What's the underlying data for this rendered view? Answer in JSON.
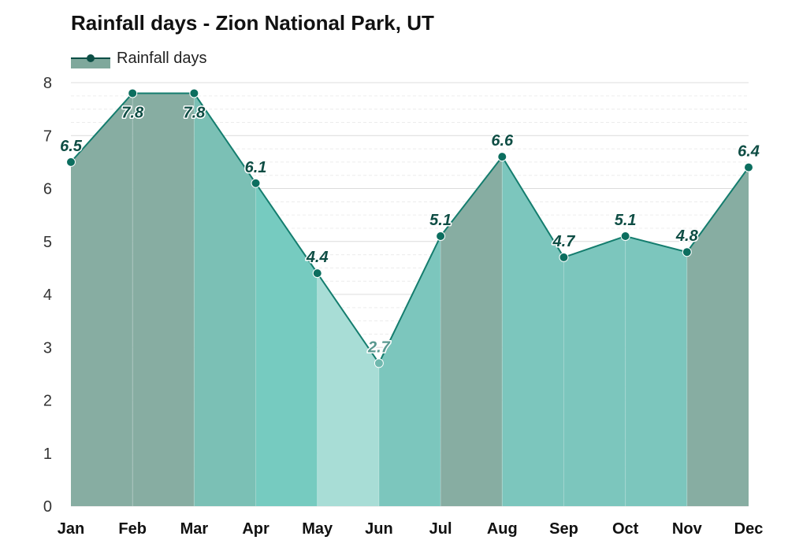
{
  "chart_data": {
    "type": "area",
    "title": "Rainfall days - Zion National Park, UT",
    "categories": [
      "Jan",
      "Feb",
      "Mar",
      "Apr",
      "May",
      "Jun",
      "Jul",
      "Aug",
      "Sep",
      "Oct",
      "Nov",
      "Dec"
    ],
    "series": [
      {
        "name": "Rainfall days",
        "values": [
          6.5,
          7.8,
          7.8,
          6.1,
          4.4,
          2.7,
          5.1,
          6.6,
          4.7,
          5.1,
          4.8,
          6.4
        ]
      }
    ],
    "ylim": [
      0,
      8
    ],
    "yticks": [
      "0",
      "1",
      "2",
      "3",
      "4",
      "5",
      "6",
      "7",
      "8"
    ],
    "value_labels": [
      "6.5",
      "7.8",
      "7.8",
      "6.1",
      "4.4",
      "2.7",
      "5.1",
      "6.6",
      "4.7",
      "5.1",
      "4.8",
      "6.4"
    ],
    "grid": true,
    "legend_position": "top-left",
    "segment_colors": [
      "#87ada2",
      "#87ada2",
      "#7bc0b5",
      "#76cbc0",
      "#a8ddd6",
      "#7cc6bd",
      "#87ada2",
      "#7cc6bd",
      "#7cc6bd",
      "#7cc6bd",
      "#87ada2"
    ],
    "colors": {
      "line": "#147d6e",
      "marker": "#0c6e5f",
      "label": "#0e4d44",
      "label_light": "#5a9990",
      "legend_swatch": "#7fa89c",
      "legend_marker": "#0d4f46"
    }
  }
}
